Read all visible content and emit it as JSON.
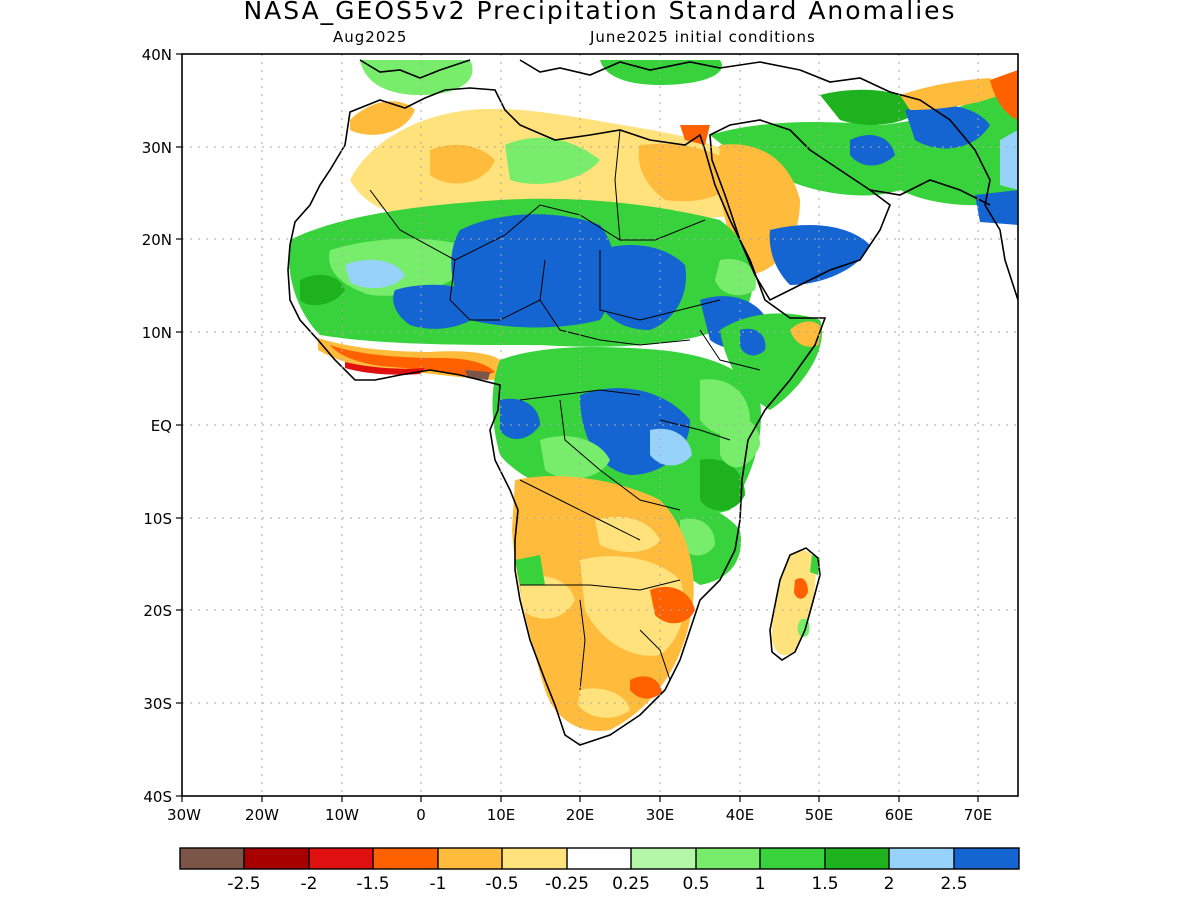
{
  "map": {
    "title": "NASA_GEOS5v2 Precipitation Standard Anomalies",
    "subtitle_left": "Aug2025",
    "subtitle_right": "June2025 initial conditions",
    "lat_labels": [
      "40N",
      "30N",
      "20N",
      "10N",
      "EQ",
      "10S",
      "20S",
      "30S",
      "40S"
    ],
    "lon_labels": [
      "30W",
      "20W",
      "10W",
      "0",
      "10E",
      "20E",
      "30E",
      "40E",
      "50E",
      "60E",
      "70E"
    ]
  },
  "legend": {
    "colors": [
      "#7a5548",
      "#a80000",
      "#e01010",
      "#ff6000",
      "#ffbb3c",
      "#ffe27c",
      "#ffffff",
      "#b4f7a8",
      "#78ed6c",
      "#37d23c",
      "#1eb31e",
      "#96d2fa",
      "#1464d2"
    ],
    "labels": [
      "-2.5",
      "-2",
      "-1.5",
      "-1",
      "-0.5",
      "-0.25",
      "0.25",
      "0.5",
      "1",
      "1.5",
      "2",
      "2.5"
    ]
  }
}
